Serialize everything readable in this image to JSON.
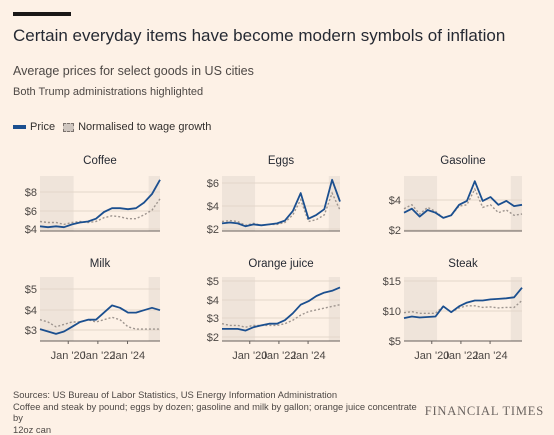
{
  "title": "Certain everyday items have become modern symbols of inflation",
  "subtitle": "Average prices for select goods in US cities",
  "note": "Both Trump administrations highlighted",
  "legend": {
    "price": "Price",
    "normalised": "Normalised to wage growth"
  },
  "sources": {
    "line1": "Sources: US Bureau of Labor Statistics, US Energy Information Administration",
    "line2": "Coffee and steak by pound; eggs by dozen; gasoline and milk by gallon; orange juice concentrate by",
    "line3": "12oz can"
  },
  "brand": "FINANCIAL TIMES",
  "colors": {
    "price": "#1b4f8f",
    "normalised": "#9e958f",
    "highlight": "#efe4da",
    "background": "#fdf1e6"
  },
  "chart_data": [
    {
      "type": "line",
      "title": "Coffee",
      "x_ticks": [],
      "y_ticks": [
        "$4",
        "$6",
        "$8"
      ],
      "ylim": [
        3.6,
        9.4
      ],
      "x": [
        "Jan '18",
        "Jul '18",
        "Jan '19",
        "Jul '19",
        "Jan '20",
        "Jul '20",
        "Jan '21",
        "Jul '21",
        "Jan '22",
        "Jul '22",
        "Jan '23",
        "Jul '23",
        "Jan '24",
        "Jul '24",
        "Jan '25",
        "Apr '25"
      ],
      "series": [
        {
          "name": "Price",
          "values": [
            4.1,
            4.0,
            4.1,
            4.0,
            4.3,
            4.5,
            4.6,
            4.9,
            5.6,
            6.0,
            6.0,
            5.9,
            6.0,
            6.6,
            7.5,
            9.0
          ]
        },
        {
          "name": "Normalised to wage growth",
          "values": [
            4.6,
            4.5,
            4.5,
            4.3,
            4.5,
            4.6,
            4.5,
            4.6,
            5.0,
            5.2,
            5.1,
            4.9,
            4.9,
            5.3,
            5.8,
            7.0
          ]
        }
      ]
    },
    {
      "type": "line",
      "title": "Eggs",
      "x_ticks": [],
      "y_ticks": [
        "$2",
        "$4",
        "$6"
      ],
      "ylim": [
        0.8,
        6.6
      ],
      "x": [
        "Jan '18",
        "Jul '18",
        "Jan '19",
        "Jul '19",
        "Jan '20",
        "Jul '20",
        "Jan '21",
        "Jul '21",
        "Jan '22",
        "Jul '22",
        "Jan '23",
        "Jul '23",
        "Jan '24",
        "Jul '24",
        "Jan '25",
        "Apr '25"
      ],
      "series": [
        {
          "name": "Price",
          "values": [
            1.6,
            1.7,
            1.6,
            1.3,
            1.5,
            1.4,
            1.5,
            1.6,
            1.9,
            2.9,
            4.8,
            2.1,
            2.5,
            3.1,
            6.2,
            3.9
          ]
        },
        {
          "name": "Normalised to wage growth",
          "values": [
            1.8,
            1.9,
            1.8,
            1.4,
            1.6,
            1.4,
            1.5,
            1.5,
            1.7,
            2.5,
            4.1,
            1.8,
            2.0,
            2.5,
            4.8,
            3.0
          ]
        }
      ]
    },
    {
      "type": "line",
      "title": "Gasoline",
      "x_ticks": [],
      "y_ticks": [
        "$2",
        "$4"
      ],
      "ylim": [
        1.2,
        5.4
      ],
      "x": [
        "Jan '18",
        "Jul '18",
        "Jan '19",
        "Jul '19",
        "Jan '20",
        "Jul '20",
        "Jan '21",
        "Jul '21",
        "Jan '22",
        "Jul '22",
        "Jan '23",
        "Jul '23",
        "Jan '24",
        "Jul '24",
        "Jan '25",
        "Apr '25"
      ],
      "series": [
        {
          "name": "Price",
          "values": [
            2.6,
            2.9,
            2.3,
            2.8,
            2.6,
            2.2,
            2.4,
            3.2,
            3.5,
            5.0,
            3.5,
            3.8,
            3.2,
            3.5,
            3.1,
            3.2
          ]
        },
        {
          "name": "Normalised to wage growth",
          "values": [
            2.9,
            3.2,
            2.5,
            3.0,
            2.7,
            2.2,
            2.4,
            3.1,
            3.2,
            4.4,
            3.0,
            3.2,
            2.6,
            2.8,
            2.4,
            2.5
          ]
        }
      ]
    },
    {
      "type": "line",
      "title": "Milk",
      "x_ticks": [
        "Jan '20",
        "Jan '22",
        "Jan '24"
      ],
      "y_ticks": [
        "$3",
        "$4",
        "$5"
      ],
      "ylim": [
        2.7,
        5.4
      ],
      "x": [
        "Jan '18",
        "Jul '18",
        "Jan '19",
        "Jul '19",
        "Jan '20",
        "Jul '20",
        "Jan '21",
        "Jul '21",
        "Jan '22",
        "Jul '22",
        "Jan '23",
        "Jul '23",
        "Jan '24",
        "Jul '24",
        "Jan '25",
        "Apr '25"
      ],
      "series": [
        {
          "name": "Price",
          "values": [
            3.2,
            3.1,
            3.0,
            3.1,
            3.3,
            3.5,
            3.6,
            3.6,
            3.9,
            4.2,
            4.1,
            3.9,
            3.9,
            4.0,
            4.1,
            4.0
          ]
        },
        {
          "name": "Normalised to wage growth",
          "values": [
            3.6,
            3.5,
            3.3,
            3.4,
            3.5,
            3.5,
            3.6,
            3.5,
            3.6,
            3.7,
            3.6,
            3.3,
            3.2,
            3.2,
            3.2,
            3.2
          ]
        }
      ]
    },
    {
      "type": "line",
      "title": "Orange juice",
      "x_ticks": [
        "Jan '20",
        "Jan '22",
        "Jan '24"
      ],
      "y_ticks": [
        "$2",
        "$3",
        "$4",
        "$5"
      ],
      "ylim": [
        1.7,
        5.4
      ],
      "x": [
        "Jan '18",
        "Jul '18",
        "Jan '19",
        "Jul '19",
        "Jan '20",
        "Jul '20",
        "Jan '21",
        "Jul '21",
        "Jan '22",
        "Jul '22",
        "Jan '23",
        "Jul '23",
        "Jan '24",
        "Jul '24",
        "Jan '25",
        "Apr '25"
      ],
      "series": [
        {
          "name": "Price",
          "values": [
            2.4,
            2.4,
            2.4,
            2.3,
            2.5,
            2.6,
            2.7,
            2.7,
            2.9,
            3.3,
            3.8,
            4.0,
            4.3,
            4.5,
            4.6,
            4.8
          ]
        },
        {
          "name": "Normalised to wage growth",
          "values": [
            2.7,
            2.6,
            2.6,
            2.5,
            2.6,
            2.6,
            2.6,
            2.6,
            2.7,
            2.9,
            3.2,
            3.4,
            3.5,
            3.6,
            3.7,
            3.8
          ]
        }
      ]
    },
    {
      "type": "line",
      "title": "Steak",
      "x_ticks": [
        "Jan '20",
        "Jan '22",
        "Jan '24"
      ],
      "y_ticks": [
        "$5",
        "$10",
        "$15"
      ],
      "ylim": [
        4.0,
        16.0
      ],
      "x": [
        "Jan '18",
        "Jul '18",
        "Jan '19",
        "Jul '19",
        "Jan '20",
        "Jul '20",
        "Jan '21",
        "Jul '21",
        "Jan '22",
        "Jul '22",
        "Jan '23",
        "Jul '23",
        "Jan '24",
        "Jul '24",
        "Jan '25",
        "Apr '25"
      ],
      "series": [
        {
          "name": "Price",
          "values": [
            8.3,
            8.6,
            8.4,
            8.5,
            8.6,
            10.5,
            9.4,
            10.5,
            11.2,
            11.6,
            11.6,
            11.8,
            11.9,
            12.0,
            12.2,
            14.0
          ]
        },
        {
          "name": "Normalised to wage growth",
          "values": [
            9.3,
            9.5,
            9.2,
            9.2,
            9.2,
            10.5,
            9.4,
            10.2,
            10.6,
            10.6,
            10.3,
            10.4,
            10.2,
            10.3,
            10.3,
            11.6
          ]
        }
      ]
    }
  ]
}
